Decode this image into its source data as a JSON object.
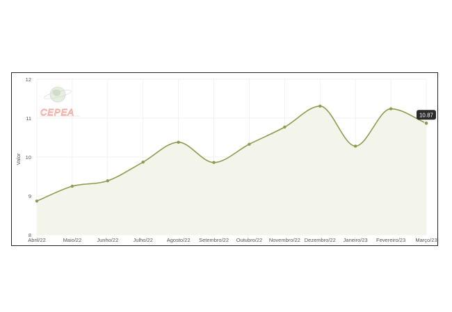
{
  "logo": {
    "text": "CEPEA"
  },
  "chart_data": {
    "type": "area",
    "categories": [
      "Abril/22",
      "Maio/22",
      "Junho/22",
      "Julho/22",
      "Agosto/22",
      "Setembro/22",
      "Outubro/22",
      "Novembro/22",
      "Dezembro/22",
      "Janeiro/23",
      "Fevereiro/23",
      "Março/23"
    ],
    "series": [
      {
        "values": [
          8.87,
          9.25,
          9.39,
          9.87,
          10.38,
          9.86,
          10.33,
          10.77,
          11.31,
          10.28,
          11.24,
          10.87
        ]
      }
    ],
    "ylabel": "Valor",
    "ylim": [
      8,
      12
    ],
    "yticks": [
      8,
      9,
      10,
      11,
      12
    ],
    "grid": true,
    "tooltip": {
      "label": "10.87"
    },
    "colors": {
      "line": "#8f9a4e",
      "fill": "#f4f5ea",
      "point": "#8f9a4e",
      "tooltip_bg": "#2b2b2b",
      "grid": "#ececec"
    }
  }
}
